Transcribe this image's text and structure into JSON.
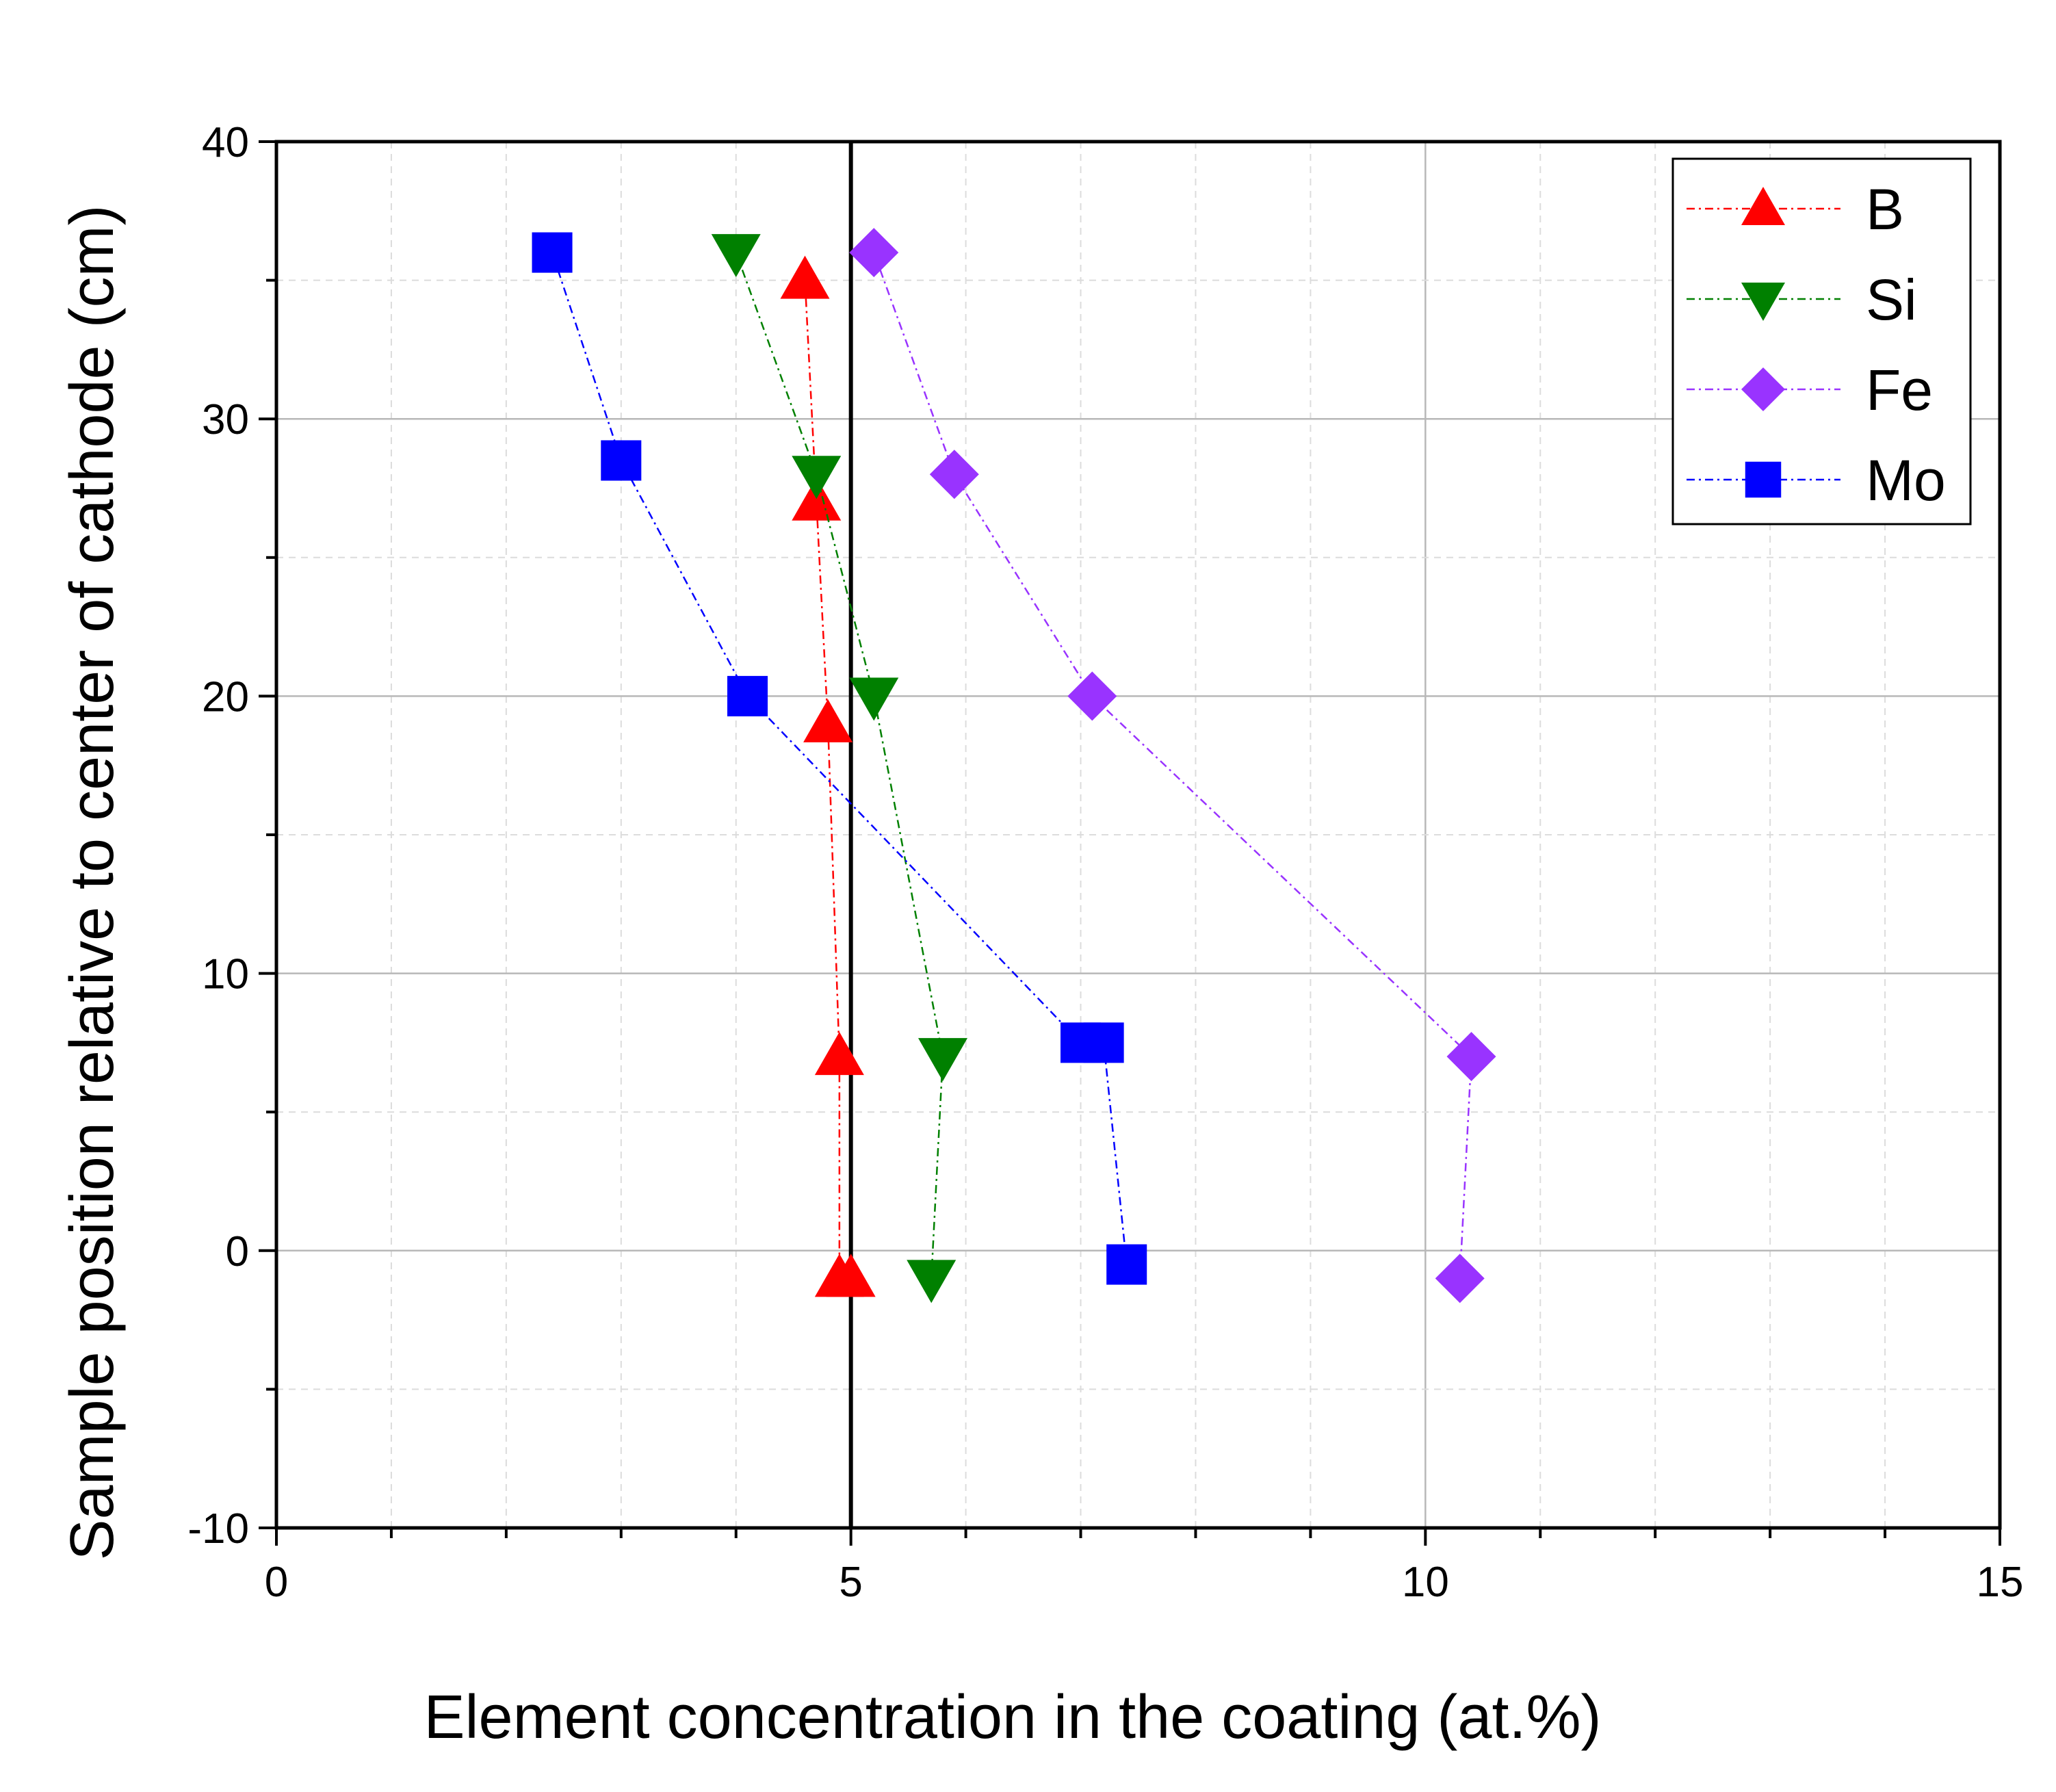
{
  "chart_data": {
    "type": "scatter",
    "xlabel": "Element concentration in the coating (at.%)",
    "ylabel": "Sample position relative to center of cathode (cm)",
    "xlim": [
      0,
      15
    ],
    "ylim": [
      -10,
      40
    ],
    "xticks": [
      0,
      5,
      10,
      15
    ],
    "xtick_labels": [
      "0",
      "5",
      "10",
      "15"
    ],
    "yticks": [
      -10,
      0,
      10,
      20,
      30,
      40
    ],
    "ytick_labels": [
      "-10",
      "0",
      "10",
      "20",
      "30",
      "40"
    ],
    "grid": true,
    "reference_line_x": 5,
    "legend_position": "top-right",
    "series": [
      {
        "name": "B",
        "color": "#ff0000",
        "marker": "triangle-up",
        "x": [
          4.6,
          4.7,
          4.8,
          4.9,
          4.9,
          5.0
        ],
        "y": [
          35,
          27,
          19,
          7,
          -1,
          -1
        ]
      },
      {
        "name": "Si",
        "color": "#008000",
        "marker": "triangle-down",
        "x": [
          4.0,
          4.7,
          5.2,
          5.8,
          5.7
        ],
        "y": [
          36,
          28,
          20,
          7,
          -1
        ]
      },
      {
        "name": "Fe",
        "color": "#9933ff",
        "marker": "diamond",
        "x": [
          5.2,
          5.9,
          7.1,
          10.4,
          10.3
        ],
        "y": [
          36,
          28,
          20,
          7,
          -1
        ]
      },
      {
        "name": "Mo",
        "color": "#0000ff",
        "marker": "square",
        "x": [
          2.4,
          3.0,
          4.1,
          7.0,
          7.2,
          7.4
        ],
        "y": [
          36,
          28.5,
          20,
          7.5,
          7.5,
          -0.5
        ]
      }
    ]
  }
}
